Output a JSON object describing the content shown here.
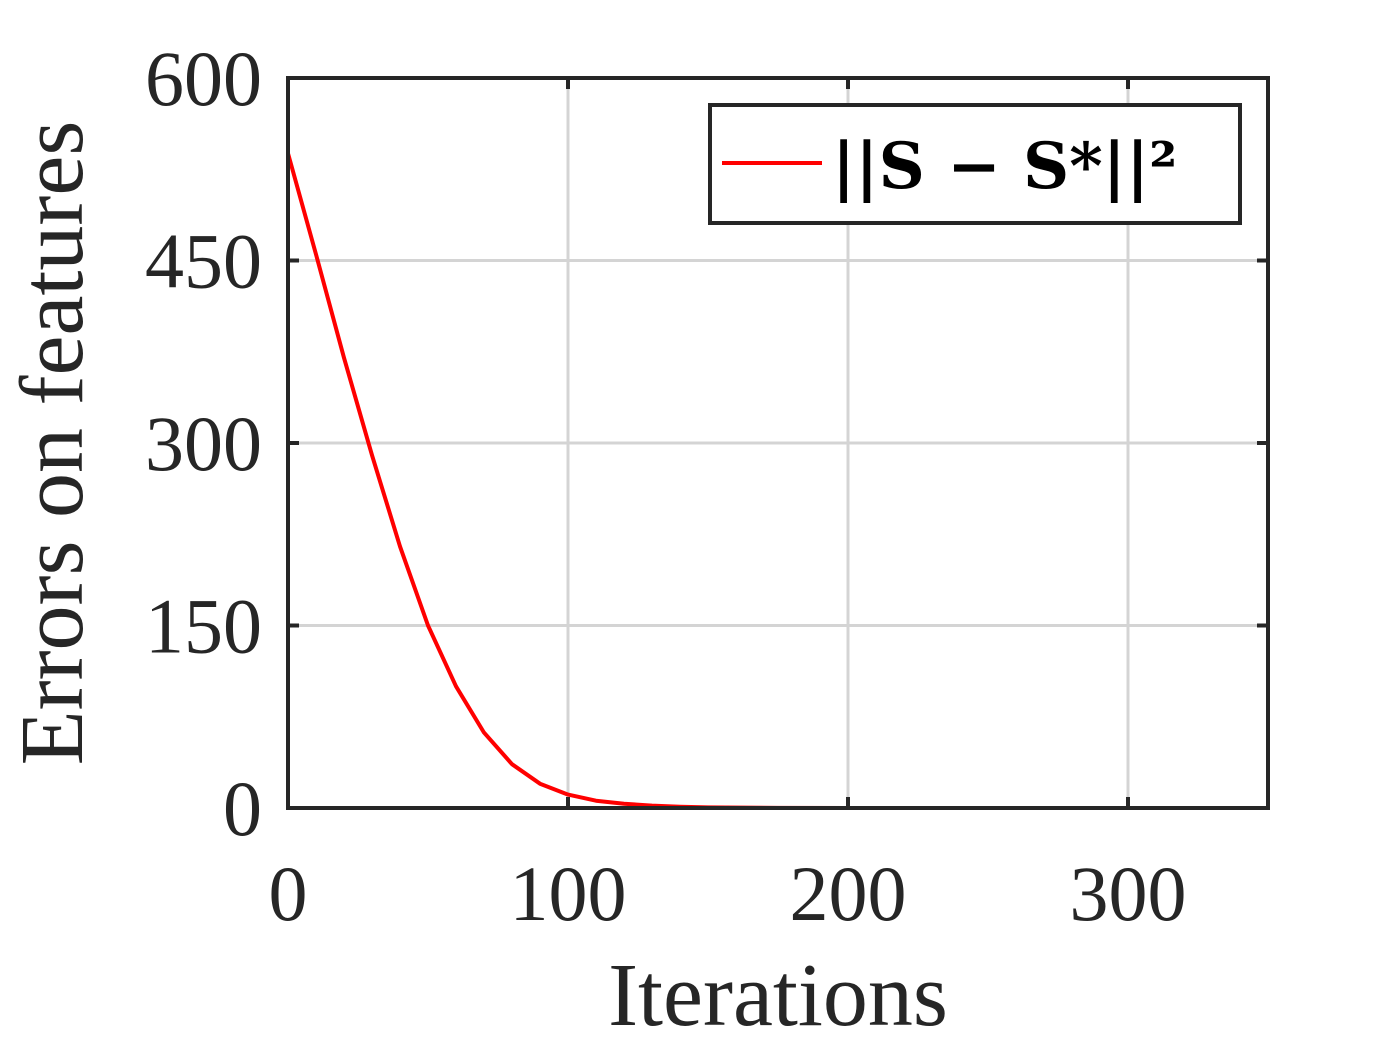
{
  "chart_data": {
    "type": "line",
    "title": "",
    "xlabel": "Iterations",
    "ylabel": "Errors on features",
    "xlim": [
      0,
      350
    ],
    "ylim": [
      0,
      600
    ],
    "xticks": [
      0,
      100,
      200,
      300
    ],
    "yticks": [
      0,
      150,
      300,
      450,
      600
    ],
    "xtick_labels": [
      "0",
      "100",
      "200",
      "300"
    ],
    "ytick_labels": [
      "0",
      "150",
      "300",
      "450",
      "600"
    ],
    "grid": true,
    "legend_position": "top-right",
    "series": [
      {
        "name": "||S − S*||²",
        "color": "#ff0000",
        "x": [
          0,
          10,
          20,
          30,
          40,
          50,
          60,
          70,
          80,
          90,
          100,
          110,
          120,
          130,
          140,
          150,
          175,
          200,
          250,
          300,
          327
        ],
        "y": [
          538,
          455,
          370,
          290,
          215,
          150,
          100,
          62,
          36,
          20,
          11,
          6,
          3.5,
          2,
          1,
          0.5,
          0.1,
          0,
          0,
          0,
          0
        ]
      }
    ]
  }
}
